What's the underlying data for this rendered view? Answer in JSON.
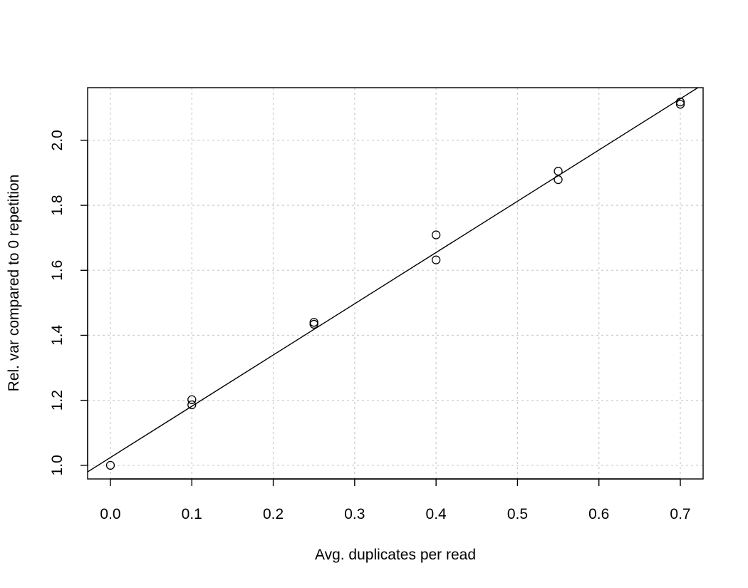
{
  "chart_data": {
    "type": "scatter",
    "title": "",
    "xlabel": "Avg. duplicates per read",
    "ylabel": "Rel. var compared to 0 repetition",
    "xlim": [
      -0.028,
      0.728
    ],
    "ylim": [
      0.958,
      2.162
    ],
    "xticks": [
      0.0,
      0.1,
      0.2,
      0.3,
      0.4,
      0.5,
      0.6,
      0.7
    ],
    "xtick_labels": [
      "0.0",
      "0.1",
      "0.2",
      "0.3",
      "0.4",
      "0.5",
      "0.6",
      "0.7"
    ],
    "yticks": [
      1.0,
      1.2,
      1.4,
      1.6,
      1.8,
      2.0
    ],
    "ytick_labels": [
      "1.0",
      "1.2",
      "1.4",
      "1.6",
      "1.8",
      "2.0"
    ],
    "grid": true,
    "points": [
      {
        "x": 0.0,
        "y": 1.0
      },
      {
        "x": 0.1,
        "y": 1.202
      },
      {
        "x": 0.1,
        "y": 1.186
      },
      {
        "x": 0.25,
        "y": 1.44
      },
      {
        "x": 0.25,
        "y": 1.434
      },
      {
        "x": 0.4,
        "y": 1.709
      },
      {
        "x": 0.4,
        "y": 1.632
      },
      {
        "x": 0.55,
        "y": 1.905
      },
      {
        "x": 0.55,
        "y": 1.879
      },
      {
        "x": 0.7,
        "y": 2.118
      },
      {
        "x": 0.7,
        "y": 2.111
      }
    ],
    "fit_line": {
      "intercept": 1.024,
      "slope": 1.577
    }
  }
}
